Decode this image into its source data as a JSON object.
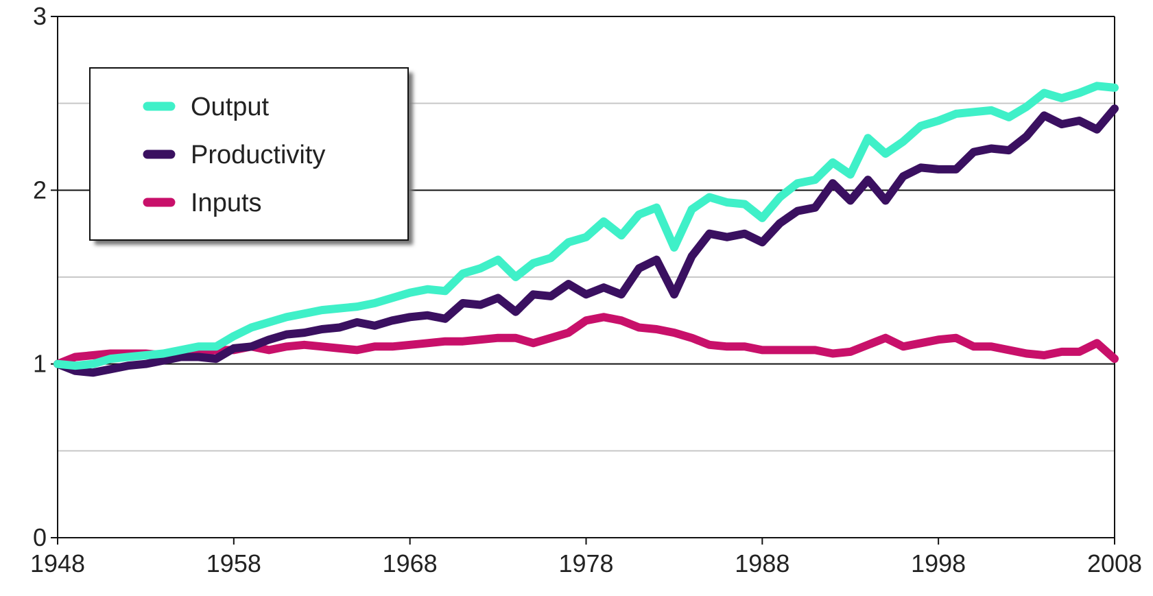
{
  "chart_data": {
    "type": "line",
    "x": [
      1948,
      1949,
      1950,
      1951,
      1952,
      1953,
      1954,
      1955,
      1956,
      1957,
      1958,
      1959,
      1960,
      1961,
      1962,
      1963,
      1964,
      1965,
      1966,
      1967,
      1968,
      1969,
      1970,
      1971,
      1972,
      1973,
      1974,
      1975,
      1976,
      1977,
      1978,
      1979,
      1980,
      1981,
      1982,
      1983,
      1984,
      1985,
      1986,
      1987,
      1988,
      1989,
      1990,
      1991,
      1992,
      1993,
      1994,
      1995,
      1996,
      1997,
      1998,
      1999,
      2000,
      2001,
      2002,
      2003,
      2004,
      2005,
      2006,
      2007,
      2008
    ],
    "series": [
      {
        "name": "Output",
        "color": "#3ff0c8",
        "values": [
          1.0,
          0.99,
          1.0,
          1.03,
          1.04,
          1.05,
          1.06,
          1.08,
          1.1,
          1.1,
          1.16,
          1.21,
          1.24,
          1.27,
          1.29,
          1.31,
          1.32,
          1.33,
          1.35,
          1.38,
          1.41,
          1.43,
          1.42,
          1.52,
          1.55,
          1.6,
          1.5,
          1.58,
          1.61,
          1.7,
          1.73,
          1.82,
          1.74,
          1.86,
          1.9,
          1.67,
          1.89,
          1.96,
          1.93,
          1.92,
          1.84,
          1.96,
          2.04,
          2.06,
          2.16,
          2.09,
          2.3,
          2.21,
          2.28,
          2.37,
          2.4,
          2.44,
          2.45,
          2.46,
          2.42,
          2.48,
          2.56,
          2.53,
          2.56,
          2.6,
          2.59
        ]
      },
      {
        "name": "Productivity",
        "color": "#3a1060",
        "values": [
          1.0,
          0.96,
          0.95,
          0.97,
          0.99,
          1.0,
          1.02,
          1.04,
          1.04,
          1.03,
          1.09,
          1.1,
          1.14,
          1.17,
          1.18,
          1.2,
          1.21,
          1.24,
          1.22,
          1.25,
          1.27,
          1.28,
          1.26,
          1.35,
          1.34,
          1.38,
          1.3,
          1.4,
          1.39,
          1.46,
          1.4,
          1.44,
          1.4,
          1.55,
          1.6,
          1.4,
          1.62,
          1.75,
          1.73,
          1.75,
          1.7,
          1.81,
          1.88,
          1.9,
          2.04,
          1.94,
          2.06,
          1.94,
          2.08,
          2.13,
          2.12,
          2.12,
          2.22,
          2.24,
          2.23,
          2.31,
          2.43,
          2.38,
          2.4,
          2.35,
          2.47
        ]
      },
      {
        "name": "Inputs",
        "color": "#c8106a",
        "values": [
          1.0,
          1.04,
          1.05,
          1.06,
          1.06,
          1.06,
          1.05,
          1.06,
          1.07,
          1.08,
          1.08,
          1.1,
          1.08,
          1.1,
          1.11,
          1.1,
          1.09,
          1.08,
          1.1,
          1.1,
          1.11,
          1.12,
          1.13,
          1.13,
          1.14,
          1.15,
          1.15,
          1.12,
          1.15,
          1.18,
          1.25,
          1.27,
          1.25,
          1.21,
          1.2,
          1.18,
          1.15,
          1.11,
          1.1,
          1.1,
          1.08,
          1.08,
          1.08,
          1.08,
          1.06,
          1.07,
          1.11,
          1.15,
          1.1,
          1.12,
          1.14,
          1.15,
          1.1,
          1.1,
          1.08,
          1.06,
          1.05,
          1.07,
          1.07,
          1.12,
          1.03
        ]
      }
    ],
    "xlim": [
      1948,
      2008
    ],
    "xticks": [
      1948,
      1958,
      1968,
      1978,
      1988,
      1998,
      2008
    ],
    "ylim": [
      0,
      3
    ],
    "yticks": [
      0,
      1,
      2,
      3
    ],
    "yminor": [
      0.5,
      1.5,
      2.5
    ],
    "grid": true,
    "legend": "upper left"
  }
}
